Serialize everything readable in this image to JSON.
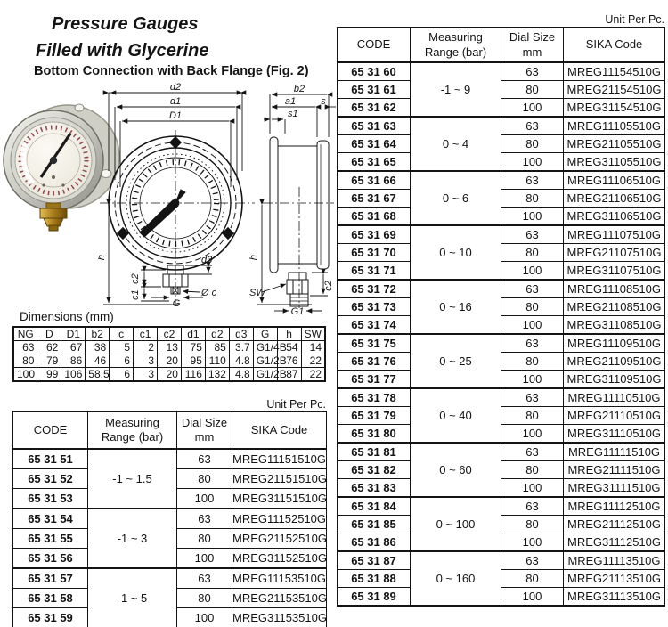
{
  "header": {
    "title_line1": "Pressure Gauges",
    "title_line2": "Filled with Glycerine",
    "subtitle": "Bottom Connection with Back Flange (Fig. 2)"
  },
  "figure": {
    "drawing_labels": {
      "d2": "d2",
      "d1": "d1",
      "D1": "D1",
      "h_front": "h",
      "c2_front": "c2",
      "c1": "c1",
      "d3": "d3",
      "phi_c": "Ø c",
      "G": "G",
      "b2": "b2",
      "a1": "a1",
      "s": "s",
      "s1": "s1",
      "h_side": "h",
      "c2_side": "c2",
      "SW": "SW",
      "G1": "G1"
    }
  },
  "dimensions_table": {
    "title": "Dimensions (mm)",
    "headers": [
      "NG",
      "D",
      "D1",
      "b2",
      "c",
      "c1",
      "c2",
      "d1",
      "d2",
      "d3",
      "G",
      "h",
      "SW"
    ],
    "rows": [
      [
        "63",
        "62",
        "67",
        "38",
        "5",
        "2",
        "13",
        "75",
        "85",
        "3.7",
        "G1/4B",
        "54",
        "14"
      ],
      [
        "80",
        "79",
        "86",
        "46",
        "6",
        "3",
        "20",
        "95",
        "110",
        "4.8",
        "G1/2B",
        "76",
        "22"
      ],
      [
        "100",
        "99",
        "106",
        "58.5",
        "6",
        "3",
        "20",
        "116",
        "132",
        "4.8",
        "G1/2B",
        "87",
        "22"
      ]
    ]
  },
  "left_table": {
    "unit_label": "Unit Per Pc.",
    "headers": [
      [
        "CODE"
      ],
      [
        "Measuring",
        "Range (bar)"
      ],
      [
        "Dial Size",
        "mm"
      ],
      [
        "SIKA Code"
      ]
    ],
    "groups": [
      {
        "range": "-1 ~ 1.5",
        "rows": [
          {
            "code": "65 31 51",
            "dial": "63",
            "sika": "MREG11151510G"
          },
          {
            "code": "65 31 52",
            "dial": "80",
            "sika": "MREG21151510G"
          },
          {
            "code": "65 31 53",
            "dial": "100",
            "sika": "MREG31151510G"
          }
        ]
      },
      {
        "range": "-1 ~ 3",
        "rows": [
          {
            "code": "65 31 54",
            "dial": "63",
            "sika": "MREG11152510G"
          },
          {
            "code": "65 31 55",
            "dial": "80",
            "sika": "MREG21152510G"
          },
          {
            "code": "65 31 56",
            "dial": "100",
            "sika": "MREG31152510G"
          }
        ]
      },
      {
        "range": "-1 ~ 5",
        "rows": [
          {
            "code": "65 31 57",
            "dial": "63",
            "sika": "MREG11153510G"
          },
          {
            "code": "65 31 58",
            "dial": "80",
            "sika": "MREG21153510G"
          },
          {
            "code": "65 31 59",
            "dial": "100",
            "sika": "MREG31153510G"
          }
        ]
      }
    ]
  },
  "right_table": {
    "unit_label": "Unit Per Pc.",
    "headers": [
      [
        "CODE"
      ],
      [
        "Measuring",
        "Range (bar)"
      ],
      [
        "Dial Size",
        "mm"
      ],
      [
        "SIKA Code"
      ]
    ],
    "groups": [
      {
        "range": "-1 ~ 9",
        "rows": [
          {
            "code": "65 31 60",
            "dial": "63",
            "sika": "MREG11154510G"
          },
          {
            "code": "65 31 61",
            "dial": "80",
            "sika": "MREG21154510G"
          },
          {
            "code": "65 31 62",
            "dial": "100",
            "sika": "MREG31154510G"
          }
        ]
      },
      {
        "range": "0 ~ 4",
        "rows": [
          {
            "code": "65 31 63",
            "dial": "63",
            "sika": "MREG11105510G"
          },
          {
            "code": "65 31 64",
            "dial": "80",
            "sika": "MREG21105510G"
          },
          {
            "code": "65 31 65",
            "dial": "100",
            "sika": "MREG31105510G"
          }
        ]
      },
      {
        "range": "0 ~ 6",
        "rows": [
          {
            "code": "65 31 66",
            "dial": "63",
            "sika": "MREG11106510G"
          },
          {
            "code": "65 31 67",
            "dial": "80",
            "sika": "MREG21106510G"
          },
          {
            "code": "65 31 68",
            "dial": "100",
            "sika": "MREG31106510G"
          }
        ]
      },
      {
        "range": "0 ~ 10",
        "rows": [
          {
            "code": "65 31 69",
            "dial": "63",
            "sika": "MREG11107510G"
          },
          {
            "code": "65 31 70",
            "dial": "80",
            "sika": "MREG21107510G"
          },
          {
            "code": "65 31 71",
            "dial": "100",
            "sika": "MREG31107510G"
          }
        ]
      },
      {
        "range": "0 ~ 16",
        "rows": [
          {
            "code": "65 31 72",
            "dial": "63",
            "sika": "MREG11108510G"
          },
          {
            "code": "65 31 73",
            "dial": "80",
            "sika": "MREG21108510G"
          },
          {
            "code": "65 31 74",
            "dial": "100",
            "sika": "MREG31108510G"
          }
        ]
      },
      {
        "range": "0 ~ 25",
        "rows": [
          {
            "code": "65 31 75",
            "dial": "63",
            "sika": "MREG11109510G"
          },
          {
            "code": "65 31 76",
            "dial": "80",
            "sika": "MREG21109510G"
          },
          {
            "code": "65 31 77",
            "dial": "100",
            "sika": "MREG31109510G"
          }
        ]
      },
      {
        "range": "0 ~ 40",
        "rows": [
          {
            "code": "65 31 78",
            "dial": "63",
            "sika": "MREG11110510G"
          },
          {
            "code": "65 31 79",
            "dial": "80",
            "sika": "MREG21110510G"
          },
          {
            "code": "65 31 80",
            "dial": "100",
            "sika": "MREG31110510G"
          }
        ]
      },
      {
        "range": "0 ~ 60",
        "rows": [
          {
            "code": "65 31 81",
            "dial": "63",
            "sika": "MREG11111510G"
          },
          {
            "code": "65 31 82",
            "dial": "80",
            "sika": "MREG21111510G"
          },
          {
            "code": "65 31 83",
            "dial": "100",
            "sika": "MREG31111510G"
          }
        ]
      },
      {
        "range": "0 ~ 100",
        "rows": [
          {
            "code": "65 31 84",
            "dial": "63",
            "sika": "MREG11112510G"
          },
          {
            "code": "65 31 85",
            "dial": "80",
            "sika": "MREG21112510G"
          },
          {
            "code": "65 31 86",
            "dial": "100",
            "sika": "MREG31112510G"
          }
        ]
      },
      {
        "range": "0 ~ 160",
        "rows": [
          {
            "code": "65 31 87",
            "dial": "63",
            "sika": "MREG11113510G"
          },
          {
            "code": "65 31 88",
            "dial": "80",
            "sika": "MREG21113510G"
          },
          {
            "code": "65 31 89",
            "dial": "100",
            "sika": "MREG31113510G"
          }
        ]
      }
    ]
  }
}
